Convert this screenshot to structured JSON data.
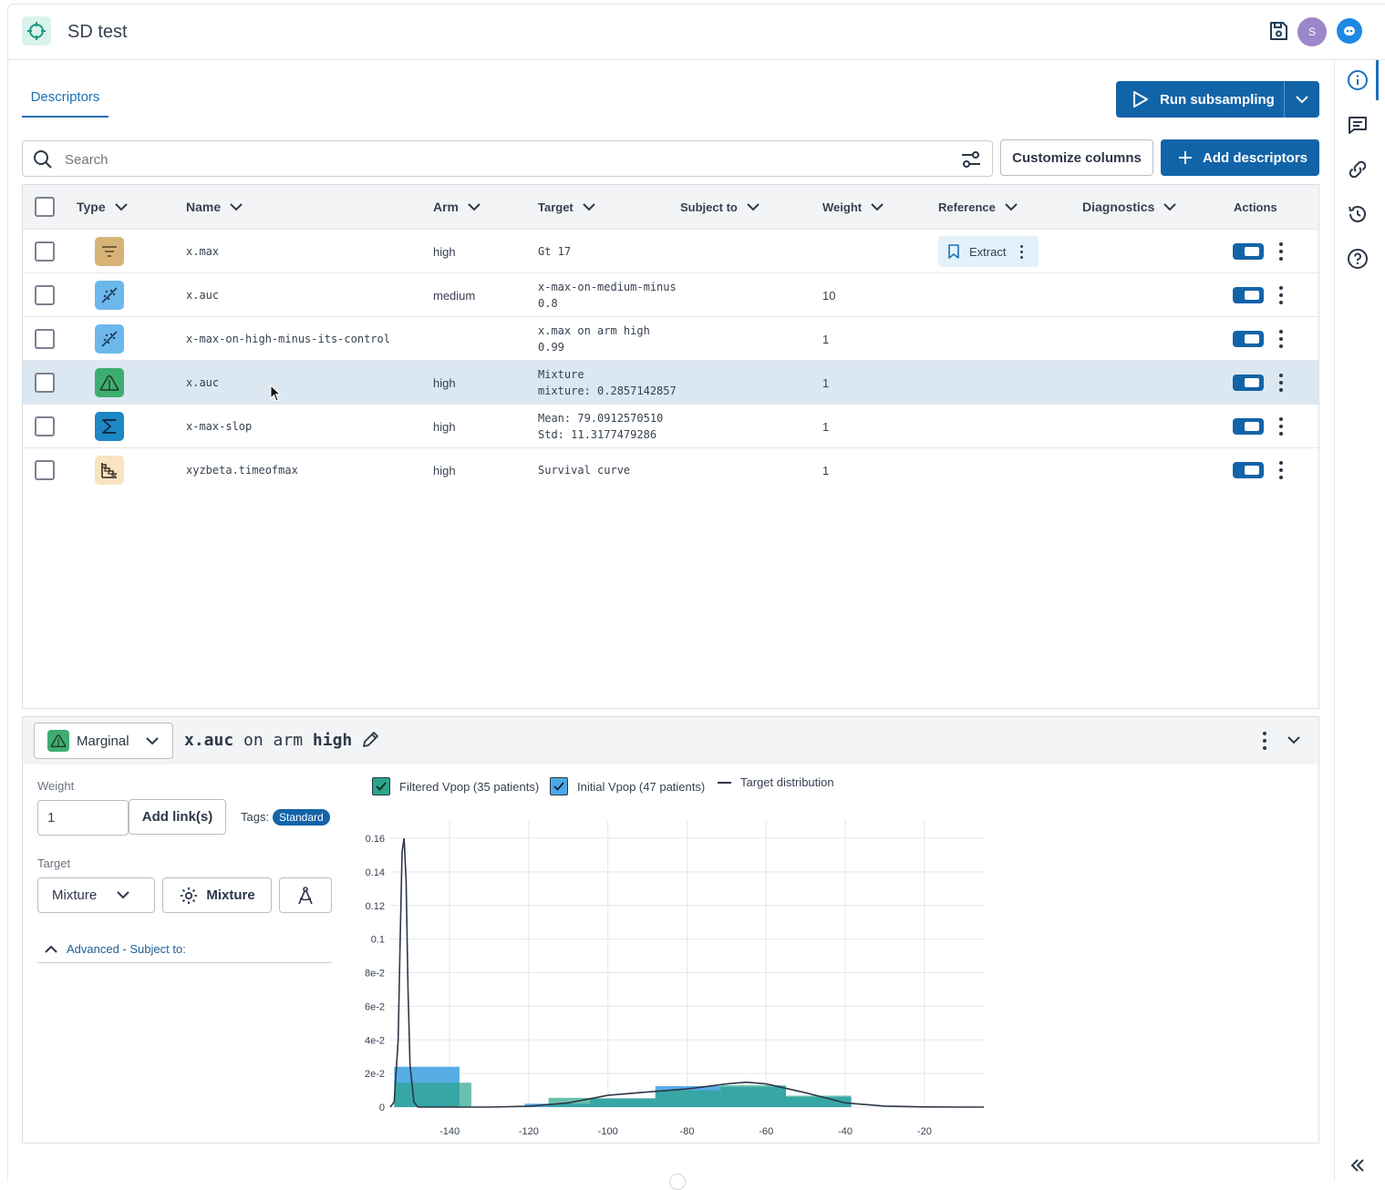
{
  "header": {
    "title": "SD test",
    "avatar_initial": "S"
  },
  "tabs": [
    {
      "label": "Descriptors",
      "active": true
    }
  ],
  "toolbar": {
    "run_label": "Run subsampling",
    "search_placeholder": "Search",
    "customize_label": "Customize columns",
    "add_label": "Add descriptors"
  },
  "table": {
    "columns": {
      "type": "Type",
      "name": "Name",
      "arm": "Arm",
      "target": "Target",
      "subject_to": "Subject to",
      "weight": "Weight",
      "reference": "Reference",
      "diagnostics": "Diagnostics",
      "actions": "Actions"
    },
    "rows": [
      {
        "type_icon": "filter-icon",
        "name": "x.max",
        "arm": "high",
        "target1": "Gt 17",
        "target2": "",
        "weight": "",
        "reference": "Extract",
        "enabled": true
      },
      {
        "type_icon": "correlation-icon",
        "name": "x.auc",
        "arm": "medium",
        "target1": "x-max-on-medium-minus",
        "target2": "0.8",
        "weight": "10",
        "reference": "",
        "enabled": true
      },
      {
        "type_icon": "correlation-icon",
        "name": "x-max-on-high-minus-its-control",
        "arm": "",
        "target1": "x.max on arm high",
        "target2": "0.99",
        "weight": "1",
        "reference": "",
        "enabled": true
      },
      {
        "type_icon": "distribution-icon",
        "name": "x.auc",
        "arm": "high",
        "target1": "Mixture",
        "target2": "mixture: 0.2857142857",
        "weight": "1",
        "reference": "",
        "enabled": true,
        "selected": true
      },
      {
        "type_icon": "sigma-icon",
        "name": "x-max-slop",
        "arm": "high",
        "target1": "Mean: 79.0912570510",
        "target2": "Std: 11.3177479286",
        "weight": "1",
        "reference": "",
        "enabled": true
      },
      {
        "type_icon": "survival-icon",
        "name": "xyzbeta.timeofmax",
        "arm": "high",
        "target1": "Survival curve",
        "target2": "",
        "weight": "1",
        "reference": "",
        "enabled": true
      }
    ]
  },
  "detail": {
    "kind_label": "Marginal",
    "descriptor": "x.auc",
    "on_arm_text": "on arm",
    "arm": "high",
    "weight_label": "Weight",
    "weight_value": "1",
    "add_links_label": "Add link(s)",
    "tags_label": "Tags:",
    "tag": "Standard",
    "target_label": "Target",
    "target_select": "Mixture",
    "mixture_button": "Mixture",
    "advanced_label": "Advanced - Subject to:",
    "legend": {
      "filtered": "Filtered Vpop (35 patients)",
      "initial": "Initial Vpop (47 patients)",
      "target": "Target distribution"
    }
  },
  "colors": {
    "accent": "#1264a8",
    "filtered": "#3aa889",
    "initial": "#3a9ee0",
    "target": "#2d3748"
  },
  "chart_data": {
    "type": "bar",
    "title": "",
    "xlabel": "",
    "ylabel": "",
    "xlim": [
      -155,
      -5
    ],
    "ylim": [
      0,
      0.16
    ],
    "x_ticks": [
      "-140",
      "-120",
      "-100",
      "-80",
      "-60",
      "-40",
      "-20"
    ],
    "y_ticks": [
      "0",
      "2e-2",
      "4e-2",
      "6e-2",
      "8e-2",
      "0.1",
      "0.12",
      "0.14",
      "0.16"
    ],
    "grid": true,
    "series": [
      {
        "name": "Initial Vpop (47 patients)",
        "kind": "histogram",
        "bins": [
          [
            -154,
            -137.5,
            0.024
          ],
          [
            -137.5,
            -121,
            0
          ],
          [
            -121,
            -104.5,
            0.002
          ],
          [
            -104.5,
            -88,
            0.005
          ],
          [
            -88,
            -71.5,
            0.0125
          ],
          [
            -71.5,
            -55,
            0.012
          ],
          [
            -55,
            -38.5,
            0.006
          ]
        ]
      },
      {
        "name": "Filtered Vpop (35 patients)",
        "kind": "histogram",
        "bins": [
          [
            -154,
            -134.5,
            0.0145
          ],
          [
            -134.5,
            -115,
            0
          ],
          [
            -115,
            -104,
            0.0055
          ],
          [
            -104,
            -88,
            0.0053
          ],
          [
            -88,
            -71.5,
            0.01
          ],
          [
            -71.5,
            -55,
            0.013
          ],
          [
            -55,
            -38.5,
            0.0068
          ]
        ]
      },
      {
        "name": "Target distribution",
        "kind": "line",
        "x": [
          -155,
          -154,
          -153,
          -152.5,
          -152,
          -151.5,
          -151,
          -150.5,
          -150,
          -149,
          -148,
          -145,
          -130,
          -120,
          -110,
          -100,
          -90,
          -80,
          -70,
          -65,
          -60,
          -50,
          -40,
          -30,
          -20,
          -10,
          -5
        ],
        "y": [
          0,
          0.003,
          0.04,
          0.1,
          0.152,
          0.16,
          0.135,
          0.07,
          0.025,
          0.003,
          0,
          0,
          0,
          0.0005,
          0.0025,
          0.007,
          0.009,
          0.0108,
          0.0138,
          0.0148,
          0.0138,
          0.0085,
          0.0025,
          0.0006,
          0.0001,
          0,
          0
        ]
      }
    ]
  }
}
